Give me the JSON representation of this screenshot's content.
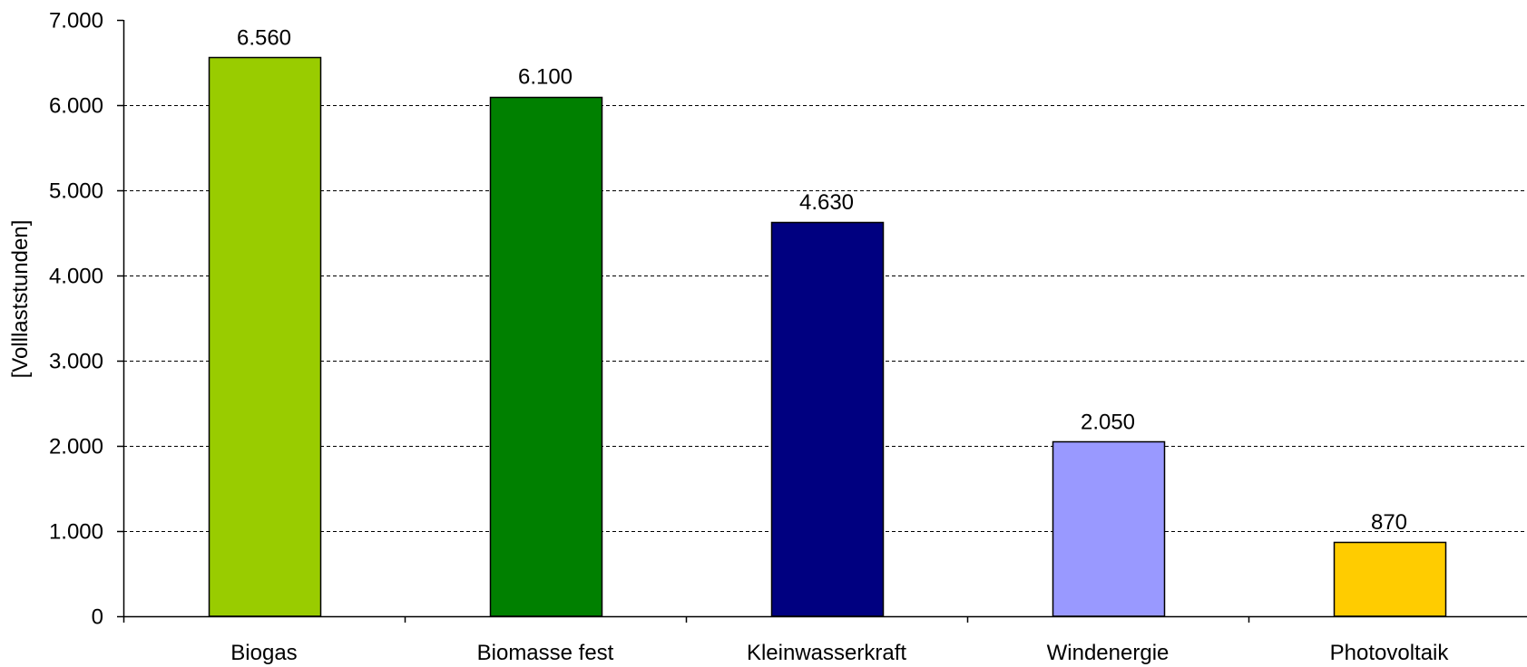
{
  "chart_data": {
    "type": "bar",
    "title": "",
    "xlabel": "",
    "ylabel": "[Volllaststunden]",
    "ylim": [
      0,
      7000
    ],
    "yticks": [
      {
        "value": 0,
        "label": "0"
      },
      {
        "value": 1000,
        "label": "1.000"
      },
      {
        "value": 2000,
        "label": "2.000"
      },
      {
        "value": 3000,
        "label": "3.000"
      },
      {
        "value": 4000,
        "label": "4.000"
      },
      {
        "value": 5000,
        "label": "5.000"
      },
      {
        "value": 6000,
        "label": "6.000"
      },
      {
        "value": 7000,
        "label": "7.000"
      }
    ],
    "grid": "horizontal dashed",
    "legend": "none",
    "categories": [
      "Biogas",
      "Biomasse fest",
      "Kleinwasserkraft",
      "Windenergie",
      "Photovoltaik"
    ],
    "values": [
      6560,
      6100,
      4630,
      2050,
      870
    ],
    "data_labels": [
      "6.560",
      "6.100",
      "4.630",
      "2.050",
      "870"
    ],
    "colors": [
      "#99CC00",
      "#008000",
      "#000080",
      "#9999FF",
      "#FFCC00"
    ]
  }
}
